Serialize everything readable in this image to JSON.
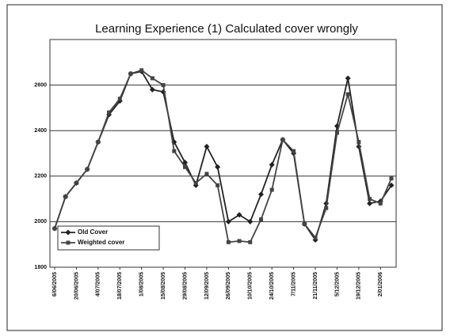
{
  "chart_data": {
    "type": "line",
    "title": "Learning Experience (1) Calculated cover wrongly",
    "categories": [
      "6/06/2005",
      null,
      "20/06/2005",
      null,
      "4/07/2005",
      null,
      "18/07/2005",
      null,
      "1/08/2005",
      null,
      "15/08/2005",
      null,
      "29/08/2005",
      null,
      "12/09/2005",
      null,
      "26/09/2005",
      null,
      "10/10/2005",
      null,
      "24/10/2005",
      null,
      "7/11/2005",
      null,
      "21/11/2005",
      null,
      "5/12/2005",
      null,
      "19/12/2005",
      null,
      "2/01/2006",
      null
    ],
    "series": [
      {
        "name": "Old Cover",
        "color": "#222222",
        "marker": "diamond",
        "values": [
          1970,
          2110,
          2170,
          2230,
          2350,
          2470,
          2530,
          2650,
          2660,
          2580,
          2570,
          2350,
          2260,
          2160,
          2330,
          2240,
          2000,
          2030,
          2000,
          2120,
          2250,
          2360,
          2300,
          1990,
          1920,
          2080,
          2420,
          2630,
          2330,
          2080,
          2090,
          2160
        ]
      },
      {
        "name": "Weighted cover",
        "color": "#444444",
        "marker": "square",
        "values": [
          1970,
          2110,
          2170,
          2230,
          2350,
          2480,
          2540,
          2650,
          2665,
          2630,
          2600,
          2310,
          2240,
          2170,
          2210,
          2160,
          1910,
          1915,
          1910,
          2010,
          2140,
          2360,
          2310,
          1990,
          1930,
          2060,
          2390,
          2560,
          2350,
          2100,
          2080,
          2190
        ]
      }
    ],
    "ylim": [
      1800,
      2800
    ],
    "yticks": [
      1800,
      2000,
      2200,
      2400,
      2600
    ],
    "grid": true,
    "legend": "lower left"
  }
}
